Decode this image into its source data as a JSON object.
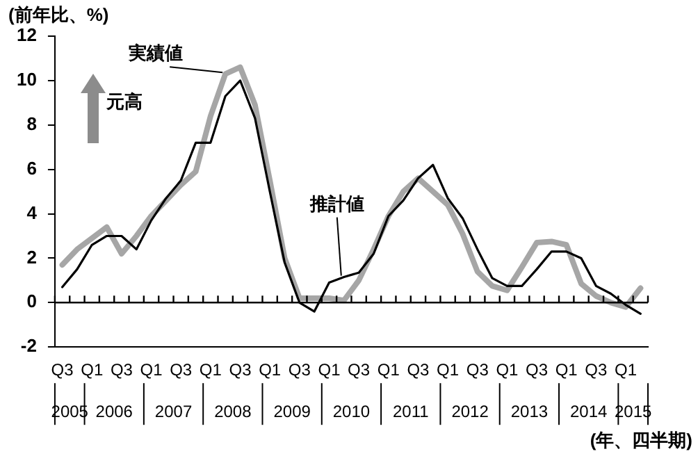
{
  "chart_data": {
    "type": "line",
    "ylabel": "(前年比、%)",
    "xlabel": "(年、四半期)",
    "categories": [
      "Q3",
      null,
      "Q1",
      null,
      "Q3",
      null,
      "Q1",
      null,
      "Q3",
      null,
      "Q1",
      null,
      "Q3",
      null,
      "Q1",
      null,
      "Q3",
      null,
      "Q1",
      null,
      "Q3",
      null,
      "Q1",
      null,
      "Q3",
      null,
      "Q1",
      null,
      "Q3",
      null,
      "Q1",
      null,
      "Q3",
      null,
      "Q1",
      null,
      "Q3",
      null,
      "Q1",
      null
    ],
    "series": [
      {
        "name": "実績値",
        "color": "#a6a6a6",
        "values": [
          1.7,
          2.4,
          2.9,
          3.4,
          2.2,
          3.0,
          3.9,
          4.6,
          5.3,
          5.9,
          8.4,
          10.3,
          10.6,
          8.9,
          5.5,
          2.0,
          0.2,
          0.2,
          0.2,
          0.1,
          1.0,
          2.4,
          3.9,
          5.0,
          5.6,
          5.0,
          4.4,
          3.1,
          1.4,
          0.75,
          0.55,
          1.6,
          2.7,
          2.75,
          2.6,
          0.85,
          0.3,
          0.0,
          -0.2,
          0.65
        ]
      },
      {
        "name": "推計値",
        "color": "#000000",
        "values": [
          0.7,
          1.5,
          2.6,
          3.0,
          3.0,
          2.4,
          3.7,
          4.7,
          5.5,
          7.2,
          7.2,
          9.3,
          10.0,
          8.3,
          5.0,
          1.8,
          0.0,
          -0.4,
          0.9,
          1.15,
          1.35,
          2.2,
          3.9,
          4.6,
          5.6,
          6.2,
          4.7,
          3.8,
          2.4,
          1.1,
          0.75,
          0.75,
          1.5,
          2.3,
          2.3,
          2.0,
          0.75,
          0.4,
          -0.1,
          -0.5
        ]
      }
    ],
    "ylim": [
      -2,
      12
    ],
    "yticks": [
      -2,
      0,
      2,
      4,
      6,
      8,
      10,
      12
    ],
    "grid": false,
    "legend": false,
    "marker": "none",
    "line_style": "solid",
    "ref_lines": [
      {
        "axis": "y",
        "value": 0
      }
    ],
    "annotations": [
      "元高",
      "2005",
      "2006",
      "2007",
      "2008",
      "2009",
      "2010",
      "2011",
      "2012",
      "2013",
      "2014",
      "2015"
    ]
  }
}
